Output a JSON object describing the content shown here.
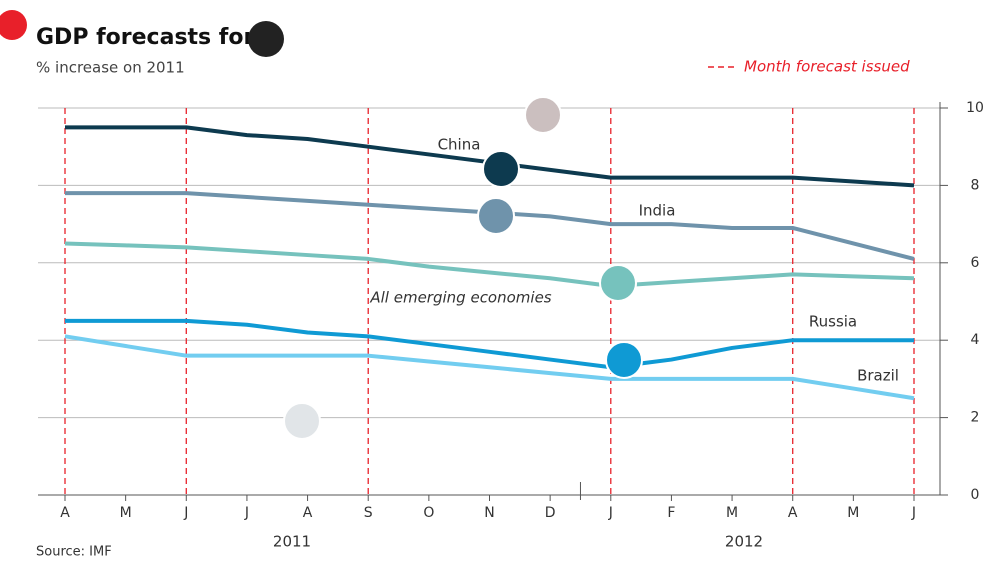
{
  "chart_data": {
    "type": "line",
    "title": "GDP forecasts for 2",
    "subtitle": "% increase on 2011",
    "source": "Source: IMF",
    "legend_label": "Month forecast issued",
    "forecast_color": "#e8202a",
    "forecast_months": [
      0,
      2,
      5,
      9,
      12,
      14
    ],
    "categories": [
      "A",
      "M",
      "J",
      "J",
      "A",
      "S",
      "O",
      "N",
      "D",
      "J",
      "F",
      "M",
      "A",
      "M",
      "J"
    ],
    "years": [
      "2011",
      "2012"
    ],
    "series": [
      {
        "name": "China",
        "color": "#0d3a4f",
        "values": [
          9.5,
          9.5,
          9.5,
          9.3,
          9.2,
          9.0,
          8.8,
          8.6,
          8.4,
          8.2,
          8.2,
          8.2,
          8.2,
          8.1,
          8.0
        ]
      },
      {
        "name": "India",
        "color": "#6f93ab",
        "values": [
          7.8,
          7.8,
          7.8,
          7.7,
          7.6,
          7.5,
          7.4,
          7.3,
          7.2,
          7.0,
          7.0,
          6.9,
          6.9,
          6.5,
          6.1
        ]
      },
      {
        "name": "All emerging economies",
        "color": "#76c2bd",
        "values": [
          6.5,
          6.45,
          6.4,
          6.3,
          6.2,
          6.1,
          5.9,
          5.75,
          5.6,
          5.4,
          5.5,
          5.6,
          5.7,
          5.65,
          5.6
        ]
      },
      {
        "name": "Russia",
        "color": "#0f9ad4",
        "values": [
          4.5,
          4.5,
          4.5,
          4.4,
          4.2,
          4.1,
          3.9,
          3.7,
          3.5,
          3.3,
          3.5,
          3.8,
          4.0,
          4.0,
          4.0
        ]
      },
      {
        "name": "Brazil",
        "color": "#72cdf0",
        "values": [
          4.1,
          3.85,
          3.6,
          3.6,
          3.6,
          3.6,
          3.45,
          3.3,
          3.15,
          3.0,
          3.0,
          3.0,
          3.0,
          2.75,
          2.5
        ]
      }
    ],
    "ylim": [
      0,
      10
    ],
    "yticks": [
      0,
      2,
      4,
      6,
      8,
      10
    ],
    "grid": true
  }
}
